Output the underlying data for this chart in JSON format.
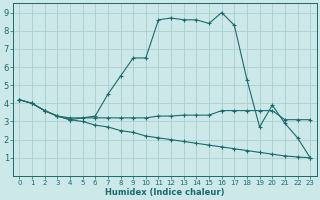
{
  "xlabel": "Humidex (Indice chaleur)",
  "bg_color": "#cce8e8",
  "line_color": "#1a6b6b",
  "grid_color": "#aad0d0",
  "xlim": [
    -0.5,
    23.5
  ],
  "ylim": [
    0,
    9.5
  ],
  "xticks": [
    0,
    1,
    2,
    3,
    4,
    5,
    6,
    7,
    8,
    9,
    10,
    11,
    12,
    13,
    14,
    15,
    16,
    17,
    18,
    19,
    20,
    21,
    22,
    23
  ],
  "yticks": [
    1,
    2,
    3,
    4,
    5,
    6,
    7,
    8,
    9
  ],
  "lines": [
    {
      "x": [
        0,
        1,
        2,
        3,
        4,
        6,
        7,
        8,
        9,
        10,
        11,
        12,
        13,
        14,
        15,
        16,
        17,
        18,
        19,
        20,
        21,
        22,
        23
      ],
      "y": [
        4.2,
        4.0,
        3.6,
        3.3,
        3.1,
        3.3,
        4.5,
        5.5,
        6.5,
        6.5,
        8.6,
        8.7,
        8.6,
        8.6,
        8.4,
        9.0,
        8.3,
        5.3,
        2.7,
        3.9,
        2.9,
        2.1,
        1.0
      ]
    },
    {
      "x": [
        0,
        1,
        2,
        3,
        4,
        5,
        6,
        7,
        8,
        9,
        10,
        11,
        12,
        13,
        14,
        15,
        16,
        17,
        18,
        19,
        20,
        21,
        22,
        23
      ],
      "y": [
        4.2,
        4.0,
        3.6,
        3.3,
        3.2,
        3.2,
        3.2,
        3.2,
        3.2,
        3.2,
        3.2,
        3.3,
        3.3,
        3.35,
        3.35,
        3.35,
        3.6,
        3.6,
        3.6,
        3.6,
        3.6,
        3.1,
        3.1,
        3.1
      ]
    },
    {
      "x": [
        0,
        1,
        2,
        3,
        4,
        5,
        6,
        7,
        8,
        9,
        10,
        11,
        12,
        13,
        14,
        15,
        16,
        17,
        18,
        19,
        20,
        21,
        22,
        23
      ],
      "y": [
        4.2,
        4.0,
        3.6,
        3.3,
        3.1,
        3.0,
        2.8,
        2.7,
        2.5,
        2.4,
        2.2,
        2.1,
        2.0,
        1.9,
        1.8,
        1.7,
        1.6,
        1.5,
        1.4,
        1.3,
        1.2,
        1.1,
        1.05,
        1.0
      ]
    }
  ]
}
